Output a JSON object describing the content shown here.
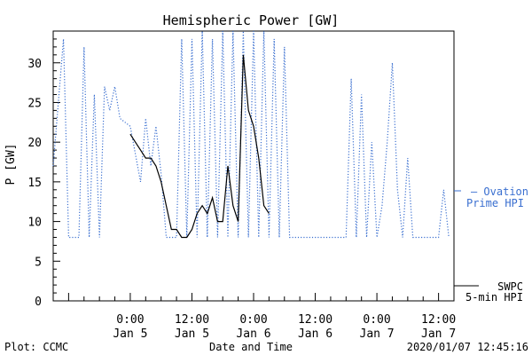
{
  "chart_data": {
    "type": "line",
    "title": "Hemispheric Power [GW]",
    "xlabel": "Date and Time",
    "ylabel": "P [GW]",
    "ylim": [
      0,
      34
    ],
    "yticks": [
      0,
      5,
      10,
      15,
      20,
      25,
      30
    ],
    "xlim": [
      "2020-01-04 09:00",
      "2020-01-07 15:00"
    ],
    "xticks": [
      {
        "time": "2020-01-05 00:00",
        "hour": "0:00",
        "day": "Jan 5"
      },
      {
        "time": "2020-01-05 12:00",
        "hour": "12:00",
        "day": "Jan 5"
      },
      {
        "time": "2020-01-06 00:00",
        "hour": "0:00",
        "day": "Jan 6"
      },
      {
        "time": "2020-01-06 12:00",
        "hour": "12:00",
        "day": "Jan 6"
      },
      {
        "time": "2020-01-07 00:00",
        "hour": "0:00",
        "day": "Jan 7"
      },
      {
        "time": "2020-01-07 12:00",
        "hour": "12:00",
        "day": "Jan 7"
      }
    ],
    "legend_placement": "right",
    "series": [
      {
        "name": "SWPC 5-min HPI",
        "legend_lines": [
          "SWPC",
          "5-min HPI"
        ],
        "color": "#000000",
        "style": "solid",
        "points": [
          [
            "2020-01-05 00:00",
            21
          ],
          [
            "2020-01-05 01:00",
            20
          ],
          [
            "2020-01-05 02:00",
            19
          ],
          [
            "2020-01-05 03:00",
            18
          ],
          [
            "2020-01-05 04:00",
            18
          ],
          [
            "2020-01-05 05:00",
            17
          ],
          [
            "2020-01-05 06:00",
            15
          ],
          [
            "2020-01-05 07:00",
            12
          ],
          [
            "2020-01-05 08:00",
            9
          ],
          [
            "2020-01-05 09:00",
            9
          ],
          [
            "2020-01-05 10:00",
            8
          ],
          [
            "2020-01-05 11:00",
            8
          ],
          [
            "2020-01-05 12:00",
            9
          ],
          [
            "2020-01-05 13:00",
            11
          ],
          [
            "2020-01-05 14:00",
            12
          ],
          [
            "2020-01-05 15:00",
            11
          ],
          [
            "2020-01-05 16:00",
            13
          ],
          [
            "2020-01-05 17:00",
            10
          ],
          [
            "2020-01-05 18:00",
            10
          ],
          [
            "2020-01-05 19:00",
            17
          ],
          [
            "2020-01-05 20:00",
            12
          ],
          [
            "2020-01-05 21:00",
            10
          ],
          [
            "2020-01-05 22:00",
            31
          ],
          [
            "2020-01-05 23:00",
            24
          ],
          [
            "2020-01-06 00:00",
            22
          ],
          [
            "2020-01-06 01:00",
            18
          ],
          [
            "2020-01-06 02:00",
            12
          ],
          [
            "2020-01-06 03:00",
            11
          ]
        ]
      },
      {
        "name": "Ovation Prime HPI",
        "legend_lines": [
          "— Ovation",
          "Prime HPI"
        ],
        "color": "#3a6fd0",
        "style": "dotted",
        "points": [
          [
            "2020-01-04 09:00",
            17
          ],
          [
            "2020-01-04 11:00",
            33
          ],
          [
            "2020-01-04 12:00",
            8
          ],
          [
            "2020-01-04 14:00",
            8
          ],
          [
            "2020-01-04 15:00",
            32
          ],
          [
            "2020-01-04 16:00",
            8
          ],
          [
            "2020-01-04 17:00",
            26
          ],
          [
            "2020-01-04 18:00",
            8
          ],
          [
            "2020-01-04 19:00",
            27
          ],
          [
            "2020-01-04 20:00",
            24
          ],
          [
            "2020-01-04 21:00",
            27
          ],
          [
            "2020-01-04 22:00",
            23
          ],
          [
            "2020-01-05 00:00",
            22
          ],
          [
            "2020-01-05 02:00",
            15
          ],
          [
            "2020-01-05 03:00",
            23
          ],
          [
            "2020-01-05 04:00",
            17
          ],
          [
            "2020-01-05 05:00",
            22
          ],
          [
            "2020-01-05 06:00",
            16
          ],
          [
            "2020-01-05 07:00",
            8
          ],
          [
            "2020-01-05 09:00",
            8
          ],
          [
            "2020-01-05 10:00",
            33
          ],
          [
            "2020-01-05 11:00",
            8
          ],
          [
            "2020-01-05 12:00",
            33
          ],
          [
            "2020-01-05 13:00",
            8
          ],
          [
            "2020-01-05 14:00",
            34
          ],
          [
            "2020-01-05 15:00",
            8
          ],
          [
            "2020-01-05 16:00",
            33
          ],
          [
            "2020-01-05 17:00",
            8
          ],
          [
            "2020-01-05 18:00",
            34
          ],
          [
            "2020-01-05 19:00",
            8
          ],
          [
            "2020-01-05 20:00",
            34
          ],
          [
            "2020-01-05 21:00",
            8
          ],
          [
            "2020-01-05 22:00",
            34
          ],
          [
            "2020-01-05 23:00",
            8
          ],
          [
            "2020-01-06 00:00",
            34
          ],
          [
            "2020-01-06 01:00",
            8
          ],
          [
            "2020-01-06 02:00",
            34
          ],
          [
            "2020-01-06 03:00",
            8
          ],
          [
            "2020-01-06 04:00",
            33
          ],
          [
            "2020-01-06 05:00",
            8
          ],
          [
            "2020-01-06 06:00",
            32
          ],
          [
            "2020-01-06 07:00",
            8
          ],
          [
            "2020-01-06 12:00",
            8
          ],
          [
            "2020-01-06 18:00",
            8
          ],
          [
            "2020-01-06 19:00",
            28
          ],
          [
            "2020-01-06 20:00",
            8
          ],
          [
            "2020-01-06 21:00",
            26
          ],
          [
            "2020-01-06 22:00",
            8
          ],
          [
            "2020-01-06 23:00",
            20
          ],
          [
            "2020-01-07 00:00",
            8
          ],
          [
            "2020-01-07 01:00",
            12
          ],
          [
            "2020-01-07 02:00",
            20
          ],
          [
            "2020-01-07 03:00",
            30
          ],
          [
            "2020-01-07 04:00",
            14
          ],
          [
            "2020-01-07 05:00",
            8
          ],
          [
            "2020-01-07 06:00",
            18
          ],
          [
            "2020-01-07 07:00",
            8
          ],
          [
            "2020-01-07 12:00",
            8
          ],
          [
            "2020-01-07 13:00",
            14
          ],
          [
            "2020-01-07 14:00",
            8
          ]
        ]
      }
    ]
  },
  "footer": {
    "left": "Plot: CCMC",
    "right": "2020/01/07 12:45:16"
  }
}
